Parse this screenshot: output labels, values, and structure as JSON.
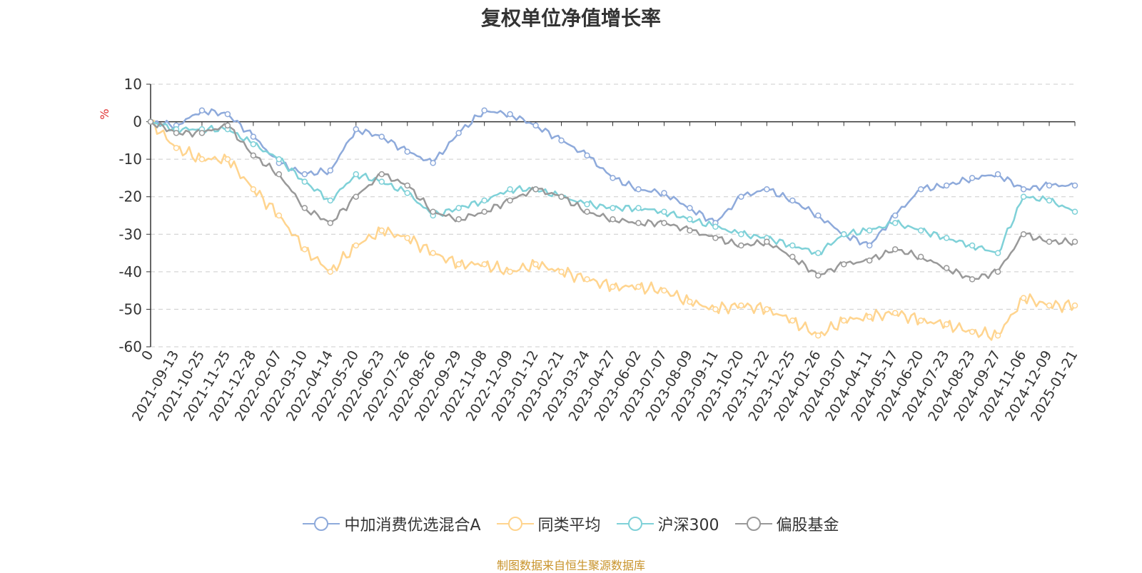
{
  "chart_data": {
    "type": "line",
    "title": "复权单位净值增长率",
    "ylabel": "%",
    "ylim": [
      -60,
      10
    ],
    "yticks": [
      10,
      0,
      -10,
      -20,
      -30,
      -40,
      -50,
      -60
    ],
    "categories": [
      "0",
      "2021-09-13",
      "2021-10-25",
      "2021-11-25",
      "2021-12-28",
      "2022-02-07",
      "2022-03-10",
      "2022-04-14",
      "2022-05-20",
      "2022-06-23",
      "2022-07-26",
      "2022-08-26",
      "2022-09-29",
      "2022-11-08",
      "2022-12-09",
      "2023-01-12",
      "2023-02-21",
      "2023-03-24",
      "2023-04-27",
      "2023-06-02",
      "2023-07-07",
      "2023-08-09",
      "2023-09-11",
      "2023-10-20",
      "2023-11-22",
      "2023-12-25",
      "2024-01-26",
      "2024-03-07",
      "2024-04-11",
      "2024-05-17",
      "2024-06-20",
      "2024-07-23",
      "2024-08-23",
      "2024-09-27",
      "2024-11-06",
      "2024-12-09",
      "2025-01-21"
    ],
    "series": [
      {
        "name": "中加消费优选混合A",
        "color": "#8eaadb",
        "values": [
          0,
          -1,
          3,
          2,
          -4,
          -11,
          -14,
          -13,
          -2,
          -4,
          -8,
          -11,
          -3,
          3,
          2,
          -1,
          -5,
          -9,
          -15,
          -18,
          -19,
          -23,
          -27,
          -20,
          -18,
          -21,
          -25,
          -30,
          -33,
          -25,
          -18,
          -17,
          -15,
          -14,
          -18,
          -17,
          -17
        ]
      },
      {
        "name": "同类平均",
        "color": "#ffd48e",
        "values": [
          0,
          -7,
          -10,
          -10,
          -18,
          -25,
          -34,
          -40,
          -33,
          -29,
          -31,
          -35,
          -38,
          -38,
          -40,
          -38,
          -40,
          -42,
          -44,
          -44,
          -45,
          -48,
          -50,
          -49,
          -50,
          -53,
          -57,
          -53,
          -52,
          -51,
          -53,
          -54,
          -56,
          -57,
          -47,
          -49,
          -49
        ]
      },
      {
        "name": "沪深300",
        "color": "#7fd1d8",
        "values": [
          0,
          -2,
          -2,
          -2,
          -6,
          -10,
          -16,
          -21,
          -14,
          -16,
          -19,
          -25,
          -23,
          -21,
          -18,
          -18,
          -20,
          -22,
          -23,
          -23,
          -24,
          -26,
          -28,
          -30,
          -31,
          -33,
          -35,
          -30,
          -29,
          -27,
          -29,
          -31,
          -33,
          -35,
          -20,
          -21,
          -24
        ]
      },
      {
        "name": "偏股基金",
        "color": "#999999",
        "values": [
          0,
          -3,
          -3,
          -1,
          -9,
          -14,
          -23,
          -27,
          -20,
          -14,
          -17,
          -24,
          -26,
          -24,
          -21,
          -18,
          -20,
          -24,
          -26,
          -27,
          -27,
          -29,
          -31,
          -33,
          -32,
          -36,
          -41,
          -38,
          -37,
          -34,
          -36,
          -39,
          -42,
          -40,
          -30,
          -32,
          -32
        ]
      }
    ]
  },
  "source": "制图数据来自恒生聚源数据库"
}
